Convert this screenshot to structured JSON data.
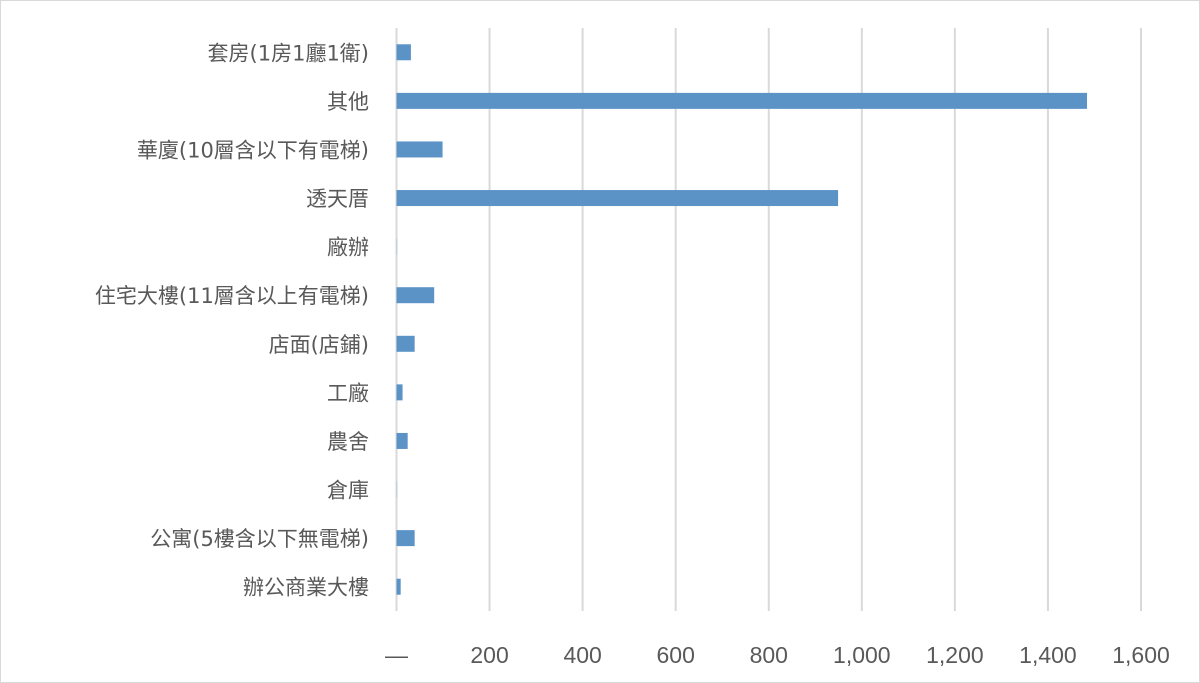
{
  "chart_data": {
    "type": "bar",
    "orientation": "horizontal",
    "title": "",
    "xlabel": "",
    "ylabel": "",
    "categories": [
      "套房(1房1廳1衛)",
      "其他",
      "華廈(10層含以下有電梯)",
      "透天厝",
      "廠辦",
      "住宅大樓(11層含以上有電梯)",
      "店面(店鋪)",
      "工廠",
      "農舍",
      "倉庫",
      "公寓(5樓含以下無電梯)",
      "辦公商業大樓"
    ],
    "values": [
      31,
      1484,
      99,
      949,
      1,
      81,
      39,
      13,
      24,
      1,
      39,
      9
    ],
    "xlim": [
      0,
      1600
    ],
    "xticks": [
      0,
      200,
      400,
      600,
      800,
      1000,
      1200,
      1400,
      1600
    ],
    "xtick_labels": [
      "—",
      "200",
      "400",
      "600",
      "800",
      "1,000",
      "1,200",
      "1,400",
      "1,600"
    ],
    "grid": "vertical",
    "legend": "none",
    "colors": {
      "bar": "#5b93c7",
      "grid": "#d9d9d9",
      "text": "#595959"
    }
  }
}
